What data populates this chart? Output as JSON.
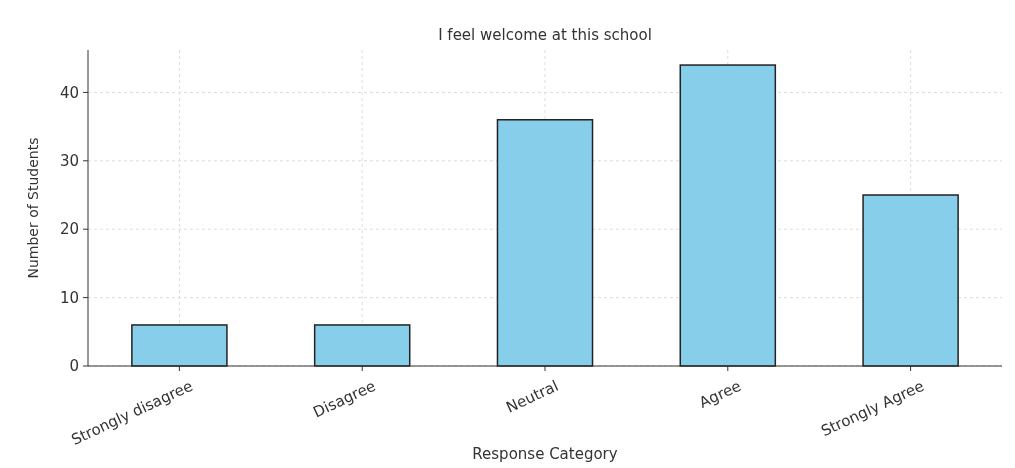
{
  "chart_data": {
    "type": "bar",
    "title": "I feel welcome at this school",
    "xlabel": "Response Category",
    "ylabel": "Number of Students",
    "categories": [
      "Strongly disagree",
      "Disagree",
      "Neutral",
      "Agree",
      "Strongly Agree"
    ],
    "values": [
      6,
      6,
      36,
      44,
      25
    ],
    "color": "#87ceeb",
    "ylim": [
      0,
      46.2
    ],
    "yticks": [
      0,
      10,
      20,
      30,
      40
    ],
    "grid": true
  }
}
